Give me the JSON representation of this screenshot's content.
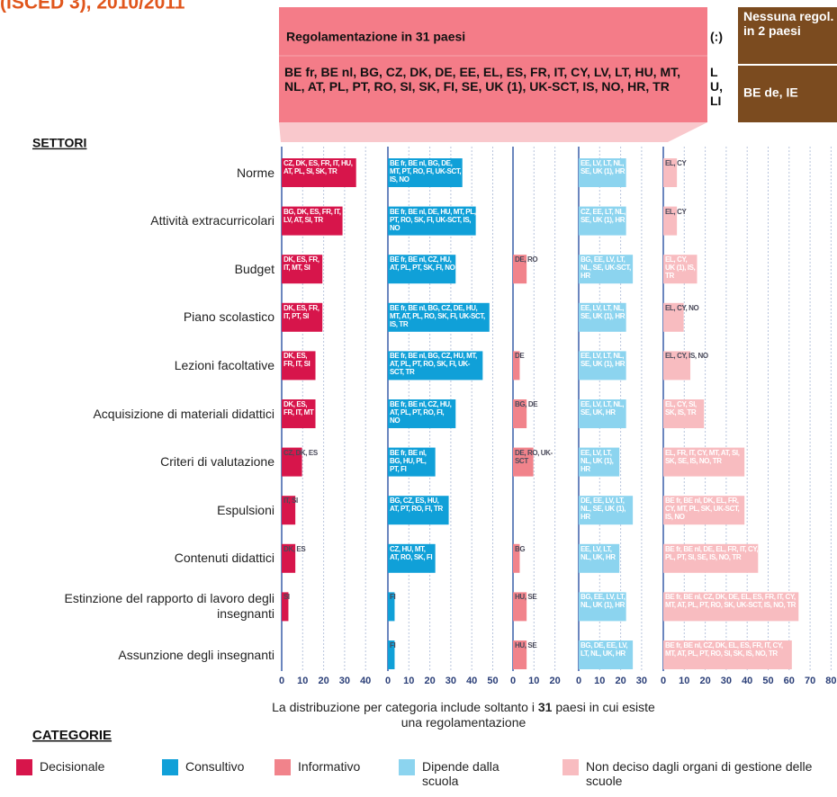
{
  "chart_data": {
    "type": "bar",
    "title": "(ISCED 3), 2010/2011",
    "header": {
      "regulated_title": "Regolamentazione in 31 paesi",
      "regulated_countries": "BE fr, BE nl, BG, CZ, DK, DE, EE, EL, ES, FR, IT, CY, LV, LT, HU, MT, NL, AT, PL, PT, RO, SI, SK, FI, SE, UK (1), UK-SCT, IS, NO, HR, TR",
      "missing_symbol": "(:)",
      "missing_countries": "LU, LI",
      "none_title": "Nessuna regol. in 2 paesi",
      "none_countries": "BE de, IE"
    },
    "y_title": "SETTORI",
    "categories": [
      "Norme",
      "Attività extracurricolari",
      "Budget",
      "Piano scolastico",
      "Lezioni facoltative",
      "Acquisizione di materiali didattici",
      "Criteri di valutazione",
      "Espulsioni",
      "Contenuti didattici",
      "Estinzione del rapporto di lavoro degli insegnanti",
      "Assunzione degli insegnanti"
    ],
    "series": [
      {
        "name": "Decisionale",
        "color": "#d7154b",
        "xlim": [
          0,
          40
        ],
        "xticks": [
          0,
          10,
          20,
          30,
          40
        ],
        "values": [
          35.5,
          29.0,
          19.4,
          19.4,
          16.1,
          16.1,
          9.7,
          6.5,
          6.5,
          3.2,
          0
        ],
        "country_labels": [
          "CZ, DK, ES, FR, IT, HU, AT, PL, SI, SK, TR",
          "BG, DK, ES, FR, IT, LV, AT, SI, TR",
          "DK, ES, FR, IT, MT, SI",
          "DK, ES, FR, IT, PT, SI",
          "DK, ES, FR, IT, SI",
          "DK, ES, FR, IT, MT",
          "CZ, DK, ES",
          "IT, SI",
          "DK, ES",
          "SI",
          null
        ]
      },
      {
        "name": "Consultivo",
        "color": "#10a0d8",
        "xlim": [
          0,
          50
        ],
        "xticks": [
          0,
          10,
          20,
          30,
          40,
          50
        ],
        "values": [
          35.5,
          41.9,
          32.3,
          48.4,
          45.2,
          32.3,
          22.6,
          29.0,
          22.6,
          3.2,
          3.2
        ],
        "country_labels": [
          "BE fr, BE nl, BG, DE, MT, PT, RO, FI, UK-SCT, IS, NO",
          "BE fr, BE nl, DE, HU, MT, PL, PT, RO, SK, FI, UK-SCT, IS, NO",
          "BE fr, BE nl, CZ, HU, AT, PL, PT, SK, FI, NO",
          "BE fr, BE nl, BG, CZ, DE, HU, MT, AT, PL, RO, SK, FI, UK-SCT, IS, TR",
          "BE fr, BE nl, BG, CZ, HU, MT, AT, PL, PT, RO, SK, FI, UK-SCT, TR",
          "BE fr, BE nl, CZ, HU, AT, PL, PT, RO, FI, NO",
          "BE fr, BE nl, BG, HU, PL, PT, FI",
          "BG, CZ, ES, HU, AT, PT, RO, FI, TR",
          "CZ, HU, MT, AT, RO, SK, FI",
          "FI",
          "FI"
        ]
      },
      {
        "name": "Informativo",
        "color": "#f1838b",
        "xlim": [
          0,
          20
        ],
        "xticks": [
          0,
          10,
          20
        ],
        "values": [
          0,
          0,
          6.5,
          0,
          3.2,
          6.5,
          9.7,
          0,
          3.2,
          6.5,
          6.5
        ],
        "country_labels": [
          null,
          null,
          "DE, RO",
          null,
          "DE",
          "BG, DE",
          "DE, RO, UK-SCT",
          null,
          "BG",
          "HU, SE",
          "HU, SE"
        ]
      },
      {
        "name": "Dipende dalla scuola",
        "color": "#8cd4ef",
        "xlim": [
          0,
          30
        ],
        "xticks": [
          0,
          10,
          20,
          30
        ],
        "values": [
          22.6,
          22.6,
          25.8,
          22.6,
          22.6,
          22.6,
          19.4,
          25.8,
          19.4,
          22.6,
          25.8
        ],
        "country_labels": [
          "EE, LV, LT, NL, SE, UK (1), HR",
          "CZ, EE, LT, NL, SE, UK (1), HR",
          "BG, EE, LV, LT, NL, SE, UK-SCT, HR",
          "EE, LV, LT, NL, SE, UK (1), HR",
          "EE, LV, LT, NL, SE, UK (1), HR",
          "EE, LV, LT, NL, SE, UK, HR",
          "EE, LV, LT, NL, UK (1), HR",
          "DE, EE, LV, LT, NL, SE, UK (1), HR",
          "EE, LV, LT, NL, UK, HR",
          "BG, EE, LV, LT, NL, UK (1), HR",
          "BG, DE, EE, LV, LT, NL, UK, HR"
        ]
      },
      {
        "name": "Non deciso dagli organi di gestione delle scuole",
        "color": "#f8bcc0",
        "xlim": [
          0,
          80
        ],
        "xticks": [
          0,
          10,
          20,
          30,
          40,
          50,
          60,
          70,
          80
        ],
        "values": [
          6.5,
          6.5,
          16.1,
          9.7,
          12.9,
          19.4,
          38.7,
          38.7,
          45.2,
          64.5,
          61.3
        ],
        "country_labels": [
          "EL, CY",
          "EL, CY",
          "EL, CY, UK (1), IS, TR",
          "EL, CY, NO",
          "EL, CY, IS, NO",
          "EL, CY, SI, SK, IS, TR",
          "EL, FR, IT, CY, MT, AT, SI, SK, SE, IS, NO, TR",
          "BE fr, BE nl, DK, EL, FR, CY, MT, PL, SK, UK-SCT, IS, NO",
          "BE fr, BE nl, DE, EL, FR, IT, CY, PL, PT, SI, SE, IS, NO, TR",
          "BE fr, BE nl, CZ, DK, DE, EL, ES, FR, IT, CY, MT, AT, PL, PT, RO, SK, UK-SCT, IS, NO, TR",
          "BE fr, BE nl, CZ, DK, EL, ES, FR, IT, CY, MT, AT, PL, PT, RO, SI, SK, IS, NO, TR"
        ]
      }
    ],
    "note": {
      "before": "La distribuzione per categoria include soltanto i",
      "bold": "31",
      "after": "paesi in cui esiste una regolamentazione"
    },
    "legend_title": "CATEGORIE",
    "grid": true
  }
}
